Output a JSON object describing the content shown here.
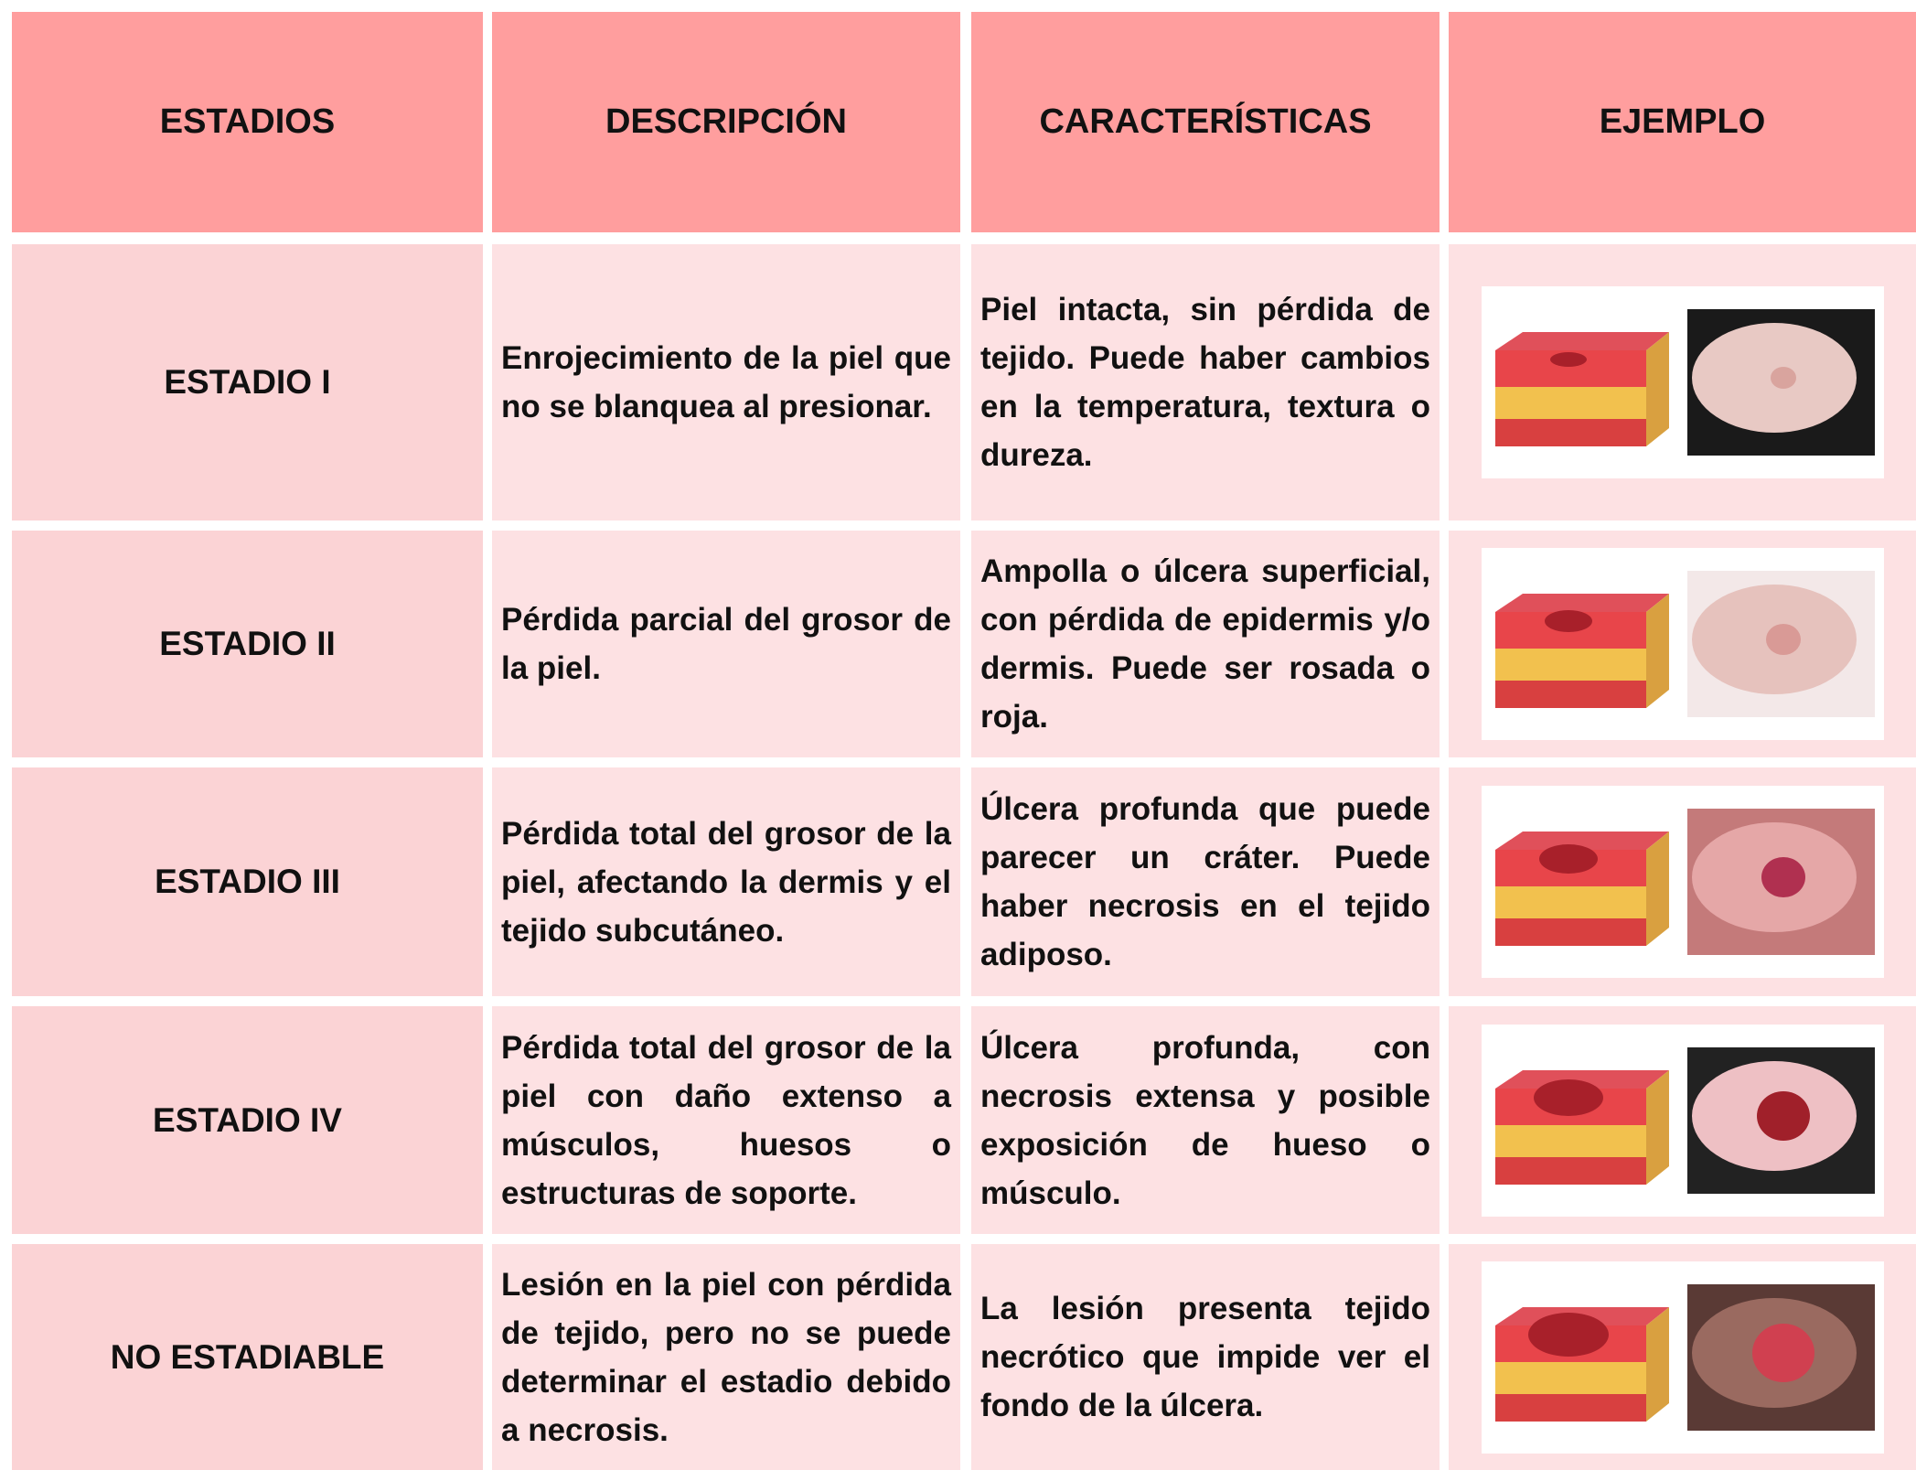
{
  "table": {
    "header": [
      "ESTADIOS",
      "DESCRIPCIÓN",
      "CARACTERÍSTICAS",
      "EJEMPLO"
    ],
    "rows": [
      [
        "ESTADIO I",
        "Enrojecimiento de la piel que no se blanquea al presionar.",
        "Piel intacta, sin pérdida de tejido. Puede haber cambios en la temperatura, textura o dureza."
      ],
      [
        "ESTADIO II",
        "Pérdida parcial del grosor de la piel.",
        "Ampolla o úlcera superficial, con pérdida de epidermis y/o dermis. Puede ser rosada o roja."
      ],
      [
        "ESTADIO III",
        "Pérdida total del grosor de la piel, afectando la dermis y el tejido subcutáneo.",
        "Úlcera profunda que puede parecer un cráter. Puede haber necrosis en el tejido adiposo."
      ],
      [
        "ESTADIO IV",
        "Pérdida total del grosor de la piel con daño extenso a músculos, huesos o estructuras de soporte.",
        "Úlcera profunda, con necrosis extensa y posible exposición de hueso o músculo."
      ],
      [
        "NO ESTADIABLE",
        "Lesión en la piel con pérdida de tejido, pero no se puede determinar el estadio debido a necrosis.",
        "La lesión presenta tejido necrótico que impide ver el fondo de la úlcera."
      ]
    ]
  }
}
